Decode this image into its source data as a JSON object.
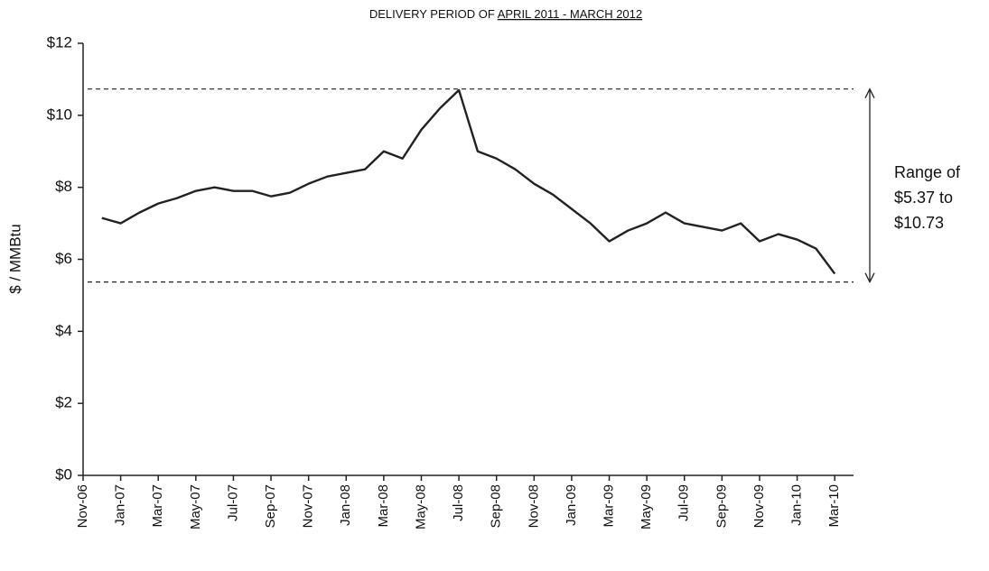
{
  "chart_data": {
    "type": "line",
    "title": "DELIVERY PERIOD OF",
    "title_emphasis": "APRIL 2011 - MARCH 2012",
    "y_label": "$ / MMBtu",
    "x": [
      "2006-12",
      "2007-01",
      "2007-02",
      "2007-03",
      "2007-04",
      "2007-05",
      "2007-06",
      "2007-07",
      "2007-08",
      "2007-09",
      "2007-10",
      "2007-11",
      "2007-12",
      "2008-01",
      "2008-02",
      "2008-03",
      "2008-04",
      "2008-05",
      "2008-06",
      "2008-07",
      "2008-08",
      "2008-09",
      "2008-10",
      "2008-11",
      "2008-12",
      "2009-01",
      "2009-02",
      "2009-03",
      "2009-04",
      "2009-05",
      "2009-06",
      "2009-07",
      "2009-08",
      "2009-09",
      "2009-10",
      "2009-11",
      "2009-12",
      "2010-01",
      "2010-02",
      "2010-03"
    ],
    "series": [
      {
        "color": "#222222",
        "values": [
          7.15,
          7.0,
          7.3,
          7.55,
          7.7,
          7.9,
          8.0,
          7.9,
          7.9,
          7.75,
          7.85,
          8.1,
          8.3,
          8.4,
          8.5,
          9.0,
          8.8,
          9.6,
          10.2,
          10.7,
          9.0,
          8.8,
          8.5,
          8.1,
          7.8,
          7.4,
          7.0,
          6.5,
          6.8,
          7.0,
          7.3,
          7.0,
          6.9,
          6.8,
          7.0,
          6.5,
          6.7,
          6.55,
          6.3,
          5.6
        ]
      }
    ],
    "xlim": [
      "2006-11",
      "2010-04"
    ],
    "xticks": [
      {
        "value": "2006-11",
        "label": "Nov-06"
      },
      {
        "value": "2007-01",
        "label": "Jan-07"
      },
      {
        "value": "2007-03",
        "label": "Mar-07"
      },
      {
        "value": "2007-05",
        "label": "May-07"
      },
      {
        "value": "2007-07",
        "label": "Jul-07"
      },
      {
        "value": "2007-09",
        "label": "Sep-07"
      },
      {
        "value": "2007-11",
        "label": "Nov-07"
      },
      {
        "value": "2008-01",
        "label": "Jan-08"
      },
      {
        "value": "2008-03",
        "label": "Mar-08"
      },
      {
        "value": "2008-05",
        "label": "May-08"
      },
      {
        "value": "2008-07",
        "label": "Jul-08"
      },
      {
        "value": "2008-09",
        "label": "Sep-08"
      },
      {
        "value": "2008-11",
        "label": "Nov-08"
      },
      {
        "value": "2009-01",
        "label": "Jan-09"
      },
      {
        "value": "2009-03",
        "label": "Mar-09"
      },
      {
        "value": "2009-05",
        "label": "May-09"
      },
      {
        "value": "2009-07",
        "label": "Jul-09"
      },
      {
        "value": "2009-09",
        "label": "Sep-09"
      },
      {
        "value": "2009-11",
        "label": "Nov-09"
      },
      {
        "value": "2010-01",
        "label": "Jan-10"
      },
      {
        "value": "2010-03",
        "label": "Mar-10"
      }
    ],
    "ylim": [
      0,
      12
    ],
    "yticks": [
      {
        "value": 0,
        "label": "$0"
      },
      {
        "value": 2,
        "label": "$2"
      },
      {
        "value": 4,
        "label": "$4"
      },
      {
        "value": 6,
        "label": "$6"
      },
      {
        "value": 8,
        "label": "$8"
      },
      {
        "value": 10,
        "label": "$10"
      },
      {
        "value": 12,
        "label": "$12"
      }
    ],
    "reference_lines": [
      10.73,
      5.37
    ],
    "annotation": [
      "Range of",
      "$5.37 to",
      "$10.73"
    ]
  }
}
